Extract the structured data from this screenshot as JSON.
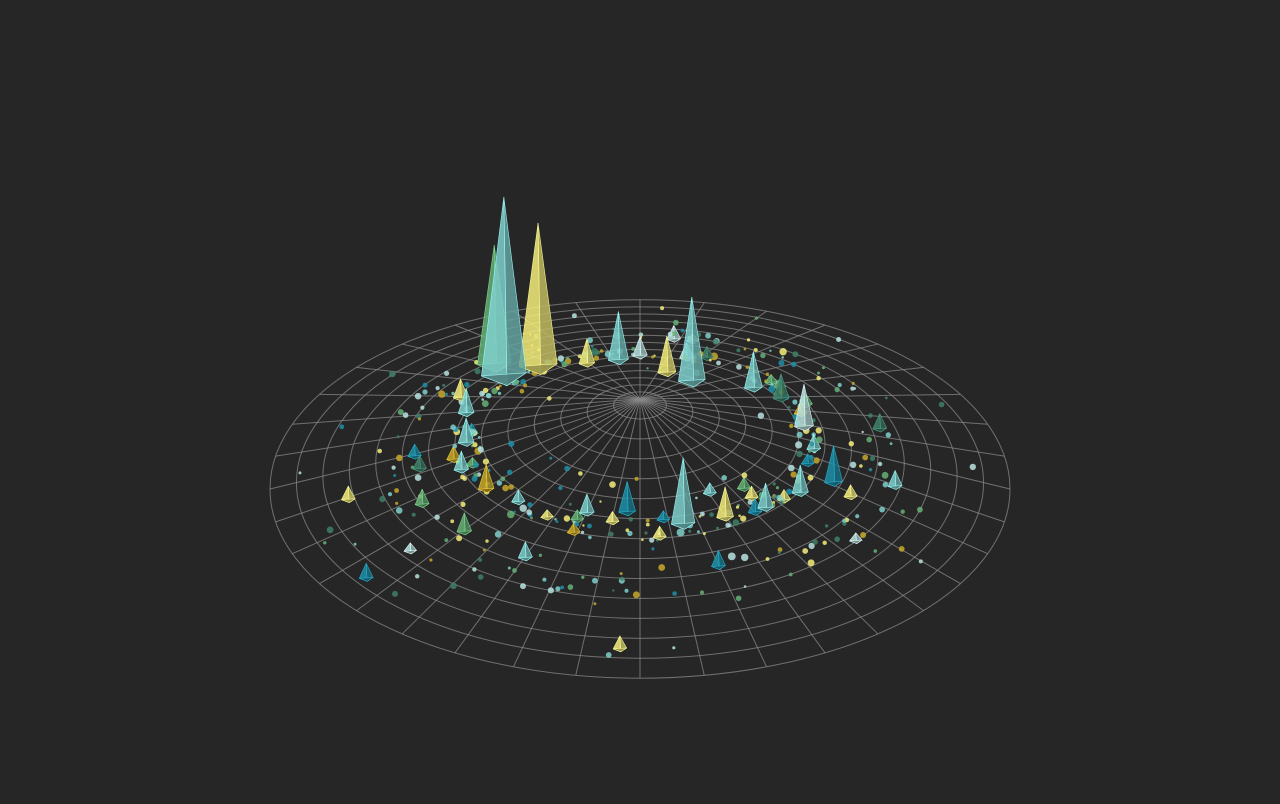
{
  "colors": {
    "background": "#262626",
    "grid": "#8a8a8a",
    "palette": [
      "#7fd0cc",
      "#f5ef7a",
      "#66b077",
      "#1f8fa8",
      "#c7a82a",
      "#b9e3e0",
      "#3f7f6a"
    ]
  },
  "chart_data": {
    "type": "3d-polar-spike",
    "title": "",
    "grid": true,
    "radial_rings": 14,
    "angular_spokes": 36,
    "radius_max": 1.0,
    "series": [
      {
        "name": "",
        "points": [
          {
            "angle": 228,
            "r": 0.55,
            "height": 0.6,
            "color": 0
          },
          {
            "angle": 232,
            "r": 0.64,
            "height": 0.4,
            "color": 2
          },
          {
            "angle": 238,
            "r": 0.52,
            "height": 0.48,
            "color": 1
          },
          {
            "angle": 300,
            "r": 0.28,
            "height": 0.28,
            "color": 0
          },
          {
            "angle": 262,
            "r": 0.42,
            "height": 0.16,
            "color": 0
          },
          {
            "angle": 284,
            "r": 0.3,
            "height": 0.12,
            "color": 1
          },
          {
            "angle": 350,
            "r": 0.45,
            "height": 0.14,
            "color": 5
          },
          {
            "angle": 18,
            "r": 0.55,
            "height": 0.12,
            "color": 3
          },
          {
            "angle": 30,
            "r": 0.5,
            "height": 0.09,
            "color": 0
          },
          {
            "angle": 320,
            "r": 0.4,
            "height": 0.12,
            "color": 0
          },
          {
            "angle": 330,
            "r": 0.44,
            "height": 0.08,
            "color": 6
          },
          {
            "angle": 75,
            "r": 0.45,
            "height": 0.22,
            "color": 0
          },
          {
            "angle": 95,
            "r": 0.4,
            "height": 0.1,
            "color": 3
          },
          {
            "angle": 45,
            "r": 0.48,
            "height": 0.08,
            "color": 0
          },
          {
            "angle": 60,
            "r": 0.46,
            "height": 0.1,
            "color": 1
          },
          {
            "angle": 110,
            "r": 0.42,
            "height": 0.06,
            "color": 0
          },
          {
            "angle": 150,
            "r": 0.48,
            "height": 0.08,
            "color": 4
          },
          {
            "angle": 165,
            "r": 0.5,
            "height": 0.06,
            "color": 0
          },
          {
            "angle": 180,
            "r": 0.47,
            "height": 0.08,
            "color": 0
          },
          {
            "angle": 200,
            "r": 0.5,
            "height": 0.08,
            "color": 0
          },
          {
            "angle": 210,
            "r": 0.56,
            "height": 0.06,
            "color": 1
          },
          {
            "angle": 140,
            "r": 0.62,
            "height": 0.06,
            "color": 2
          },
          {
            "angle": 250,
            "r": 0.42,
            "height": 0.08,
            "color": 1
          },
          {
            "angle": 270,
            "r": 0.45,
            "height": 0.06,
            "color": 5
          },
          {
            "angle": 10,
            "r": 0.7,
            "height": 0.05,
            "color": 0
          },
          {
            "angle": 120,
            "r": 0.62,
            "height": 0.05,
            "color": 0
          },
          {
            "angle": 70,
            "r": 0.62,
            "height": 0.05,
            "color": 3
          }
        ]
      }
    ]
  }
}
